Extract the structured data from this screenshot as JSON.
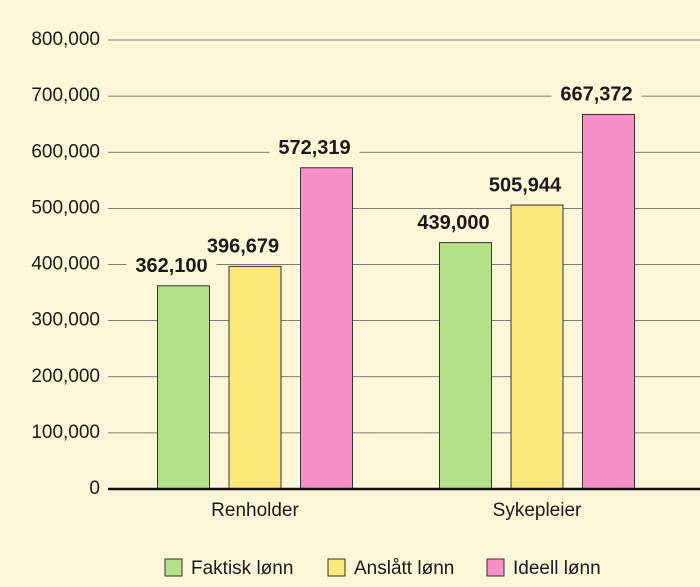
{
  "chart_data": {
    "type": "bar",
    "categories": [
      "Renholder",
      "Sykepleier"
    ],
    "series": [
      {
        "name": "Faktisk lønn",
        "color": "#b5e08a",
        "values": [
          362100,
          439000
        ],
        "value_labels": [
          "362,100",
          "439,000"
        ]
      },
      {
        "name": "Anslått lønn",
        "color": "#fbe97a",
        "values": [
          396679,
          505944
        ],
        "value_labels": [
          "396,679",
          "505,944"
        ]
      },
      {
        "name": "Ideell lønn",
        "color": "#f98fc9",
        "values": [
          572319,
          667372
        ],
        "value_labels": [
          "572,319",
          "667,372"
        ]
      }
    ],
    "ylim": [
      0,
      800000
    ],
    "yticks": [
      0,
      {
        "value": 100000,
        "label": "100,000"
      },
      {
        "value": 200000,
        "label": "200,000"
      },
      {
        "value": 300000,
        "label": "300,000"
      },
      {
        "value": 400000,
        "label": "400,000"
      },
      {
        "value": 500000,
        "label": "500,000"
      },
      {
        "value": 600000,
        "label": "600,000"
      },
      {
        "value": 700000,
        "label": "700,000"
      },
      {
        "value": 800000,
        "label": "800,000"
      }
    ],
    "grid": true
  }
}
